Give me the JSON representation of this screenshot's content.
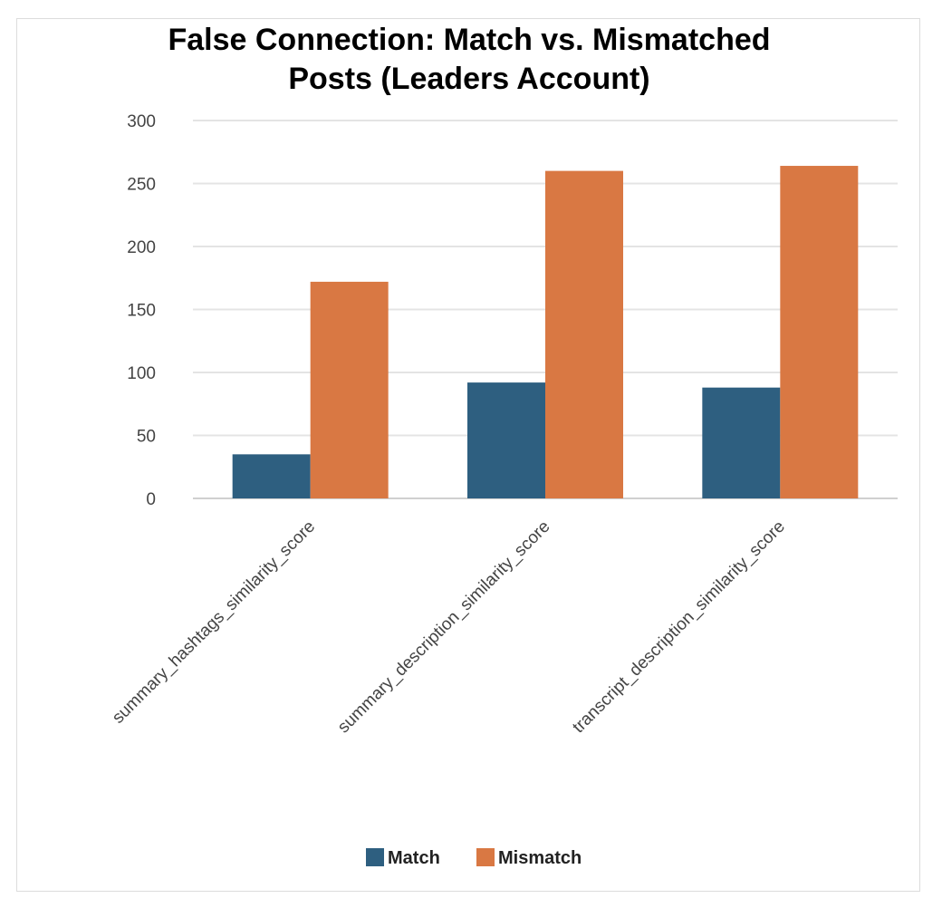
{
  "chart_data": {
    "type": "bar",
    "title_lines": [
      "False Connection: Match vs. Mismatched",
      "Posts (Leaders Account)"
    ],
    "categories": [
      "summary_hashtags_similarity_score",
      "summary_description_similarity_score",
      "transcript_description_similarity_score"
    ],
    "series": [
      {
        "name": "Match",
        "color": "#2e5f80",
        "values": [
          35,
          92,
          88
        ]
      },
      {
        "name": "Mismatch",
        "color": "#d97843",
        "values": [
          172,
          260,
          264
        ]
      }
    ],
    "yticks": [
      "0",
      "50",
      "100",
      "150",
      "200",
      "250",
      "300"
    ],
    "ylim": [
      0,
      300
    ],
    "grid": true,
    "legend_position": "bottom"
  }
}
